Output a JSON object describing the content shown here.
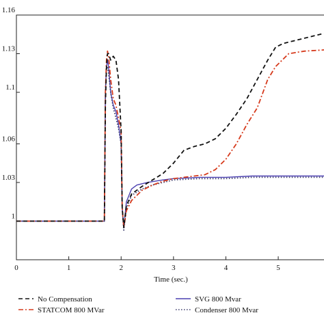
{
  "chart_data": {
    "type": "line",
    "xlabel": "Time (sec.)",
    "ylabel": "",
    "xlim": [
      0,
      5.9
    ],
    "ylim": [
      0.97,
      1.16
    ],
    "x_ticks": [
      0,
      1,
      2,
      3,
      4,
      5
    ],
    "y_ticks": [
      1,
      1.03,
      1.06,
      1.1,
      1.13,
      1.16
    ],
    "grid": false,
    "legend_position": "bottom",
    "series": [
      {
        "name": "No Compensation",
        "color": "#111111",
        "style": "dashed",
        "x": [
          0,
          1.68,
          1.7,
          1.72,
          1.74,
          1.76,
          1.8,
          1.85,
          1.9,
          1.95,
          2.0,
          2.02,
          2.05,
          2.1,
          2.2,
          2.4,
          2.6,
          2.8,
          3.0,
          3.2,
          3.4,
          3.6,
          3.8,
          4.0,
          4.2,
          4.4,
          4.6,
          4.8,
          4.95,
          5.1,
          5.3,
          5.5,
          5.7,
          5.9
        ],
        "y": [
          1.0,
          1.0,
          1.09,
          1.12,
          1.13,
          1.13,
          1.125,
          1.128,
          1.125,
          1.11,
          1.07,
          1.01,
          0.995,
          1.012,
          1.021,
          1.027,
          1.032,
          1.037,
          1.045,
          1.055,
          1.058,
          1.06,
          1.064,
          1.072,
          1.083,
          1.095,
          1.11,
          1.125,
          1.135,
          1.138,
          1.14,
          1.142,
          1.144,
          1.146
        ]
      },
      {
        "name": "STATCOM 800 MVar",
        "color": "#d63a1c",
        "style": "dashdot",
        "x": [
          0,
          1.68,
          1.7,
          1.72,
          1.74,
          1.76,
          1.8,
          1.85,
          1.9,
          1.95,
          2.0,
          2.02,
          2.05,
          2.1,
          2.2,
          2.4,
          2.6,
          2.8,
          3.0,
          3.2,
          3.4,
          3.6,
          3.8,
          4.0,
          4.2,
          4.4,
          4.6,
          4.8,
          4.95,
          5.05,
          5.2,
          5.5,
          5.9
        ],
        "y": [
          1.0,
          1.0,
          1.1,
          1.125,
          1.132,
          1.128,
          1.11,
          1.095,
          1.09,
          1.08,
          1.07,
          1.01,
          0.995,
          1.008,
          1.016,
          1.024,
          1.028,
          1.031,
          1.033,
          1.034,
          1.035,
          1.036,
          1.04,
          1.048,
          1.06,
          1.075,
          1.088,
          1.11,
          1.12,
          1.124,
          1.13,
          1.132,
          1.133
        ]
      },
      {
        "name": "SVG 800 Mvar",
        "color": "#4a3fb0",
        "style": "solid",
        "x": [
          0,
          1.68,
          1.7,
          1.72,
          1.74,
          1.76,
          1.8,
          1.85,
          1.9,
          1.95,
          2.0,
          2.02,
          2.05,
          2.1,
          2.2,
          2.3,
          2.5,
          2.8,
          3.0,
          3.5,
          4.0,
          4.5,
          5.0,
          5.5,
          5.9
        ],
        "y": [
          1.0,
          1.0,
          1.1,
          1.12,
          1.125,
          1.12,
          1.1,
          1.09,
          1.085,
          1.075,
          1.06,
          1.01,
          0.995,
          1.015,
          1.025,
          1.028,
          1.03,
          1.032,
          1.033,
          1.034,
          1.034,
          1.035,
          1.035,
          1.035,
          1.035
        ]
      },
      {
        "name": "Condenser 800 Mvar",
        "color": "#3a3a6a",
        "style": "dotted",
        "x": [
          0,
          1.68,
          1.7,
          1.72,
          1.74,
          1.76,
          1.8,
          1.85,
          1.9,
          1.95,
          2.0,
          2.02,
          2.05,
          2.1,
          2.2,
          2.4,
          2.6,
          2.8,
          3.0,
          3.5,
          4.0,
          4.5,
          5.0,
          5.5,
          5.9
        ],
        "y": [
          1.0,
          1.0,
          1.1,
          1.118,
          1.12,
          1.115,
          1.1,
          1.088,
          1.08,
          1.072,
          1.06,
          1.01,
          0.993,
          1.01,
          1.02,
          1.025,
          1.028,
          1.03,
          1.032,
          1.033,
          1.033,
          1.034,
          1.034,
          1.034,
          1.034
        ]
      }
    ]
  }
}
